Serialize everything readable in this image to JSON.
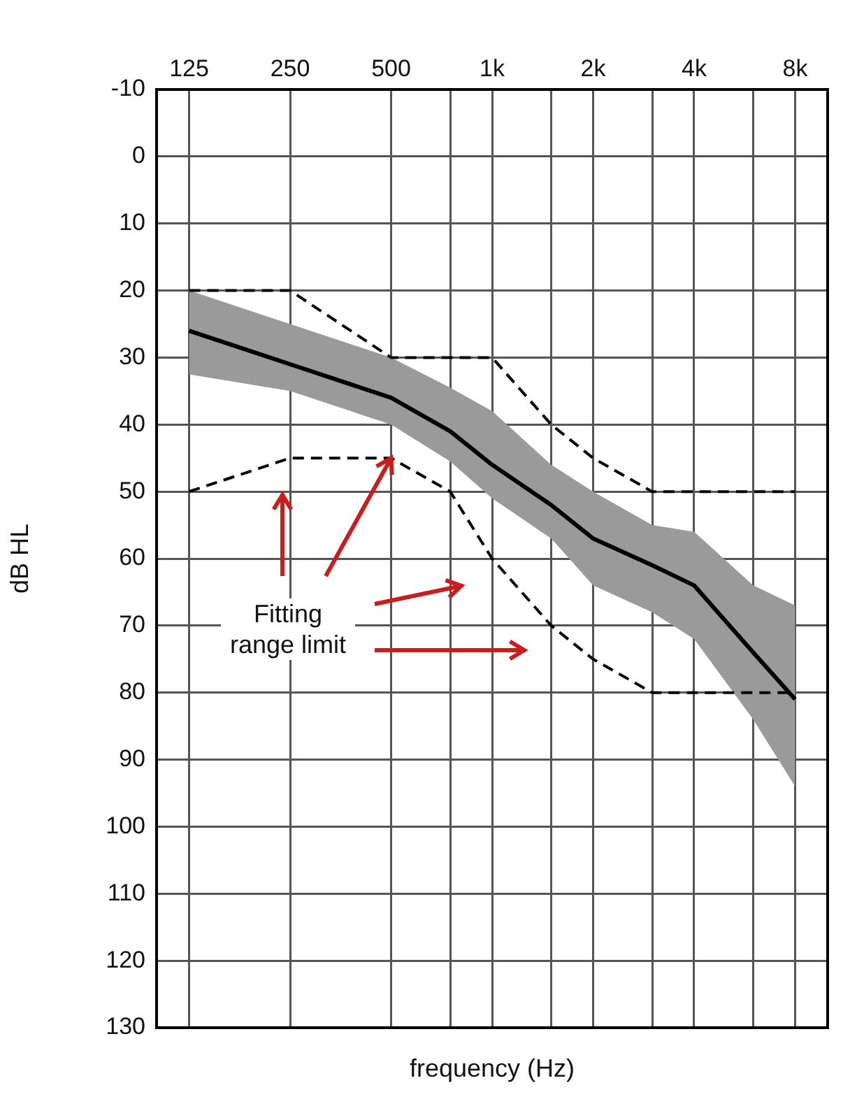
{
  "chart_data": {
    "type": "line",
    "xlabel": "frequency (Hz)",
    "ylabel": "dB HL",
    "annotations": [
      {
        "text": "Fitting range limit",
        "x": 500,
        "y": 45
      }
    ],
    "log": "x",
    "xlim": [
      100,
      10000
    ],
    "xticks": [
      {
        "value": 125,
        "label": "125"
      },
      {
        "value": 250,
        "label": "250"
      },
      {
        "value": 500,
        "label": "500"
      },
      {
        "value": 750,
        "label": null
      },
      {
        "value": 1000,
        "label": "1k"
      },
      {
        "value": 1500,
        "label": null
      },
      {
        "value": 2000,
        "label": "2k"
      },
      {
        "value": 3000,
        "label": null
      },
      {
        "value": 4000,
        "label": "4k"
      },
      {
        "value": 6000,
        "label": null
      },
      {
        "value": 8000,
        "label": "8k"
      }
    ],
    "ylim": [
      130,
      -10
    ],
    "yticks": [
      -10,
      0,
      10,
      20,
      30,
      40,
      50,
      60,
      70,
      80,
      90,
      100,
      110,
      120,
      130
    ],
    "grid": true,
    "legend": false,
    "marker": "none",
    "series": [
      {
        "color": "#000000",
        "line_style": "solid",
        "x": [
          125,
          250,
          500,
          750,
          1000,
          1500,
          2000,
          3000,
          4000,
          6000,
          8000
        ],
        "values": [
          26,
          31,
          36,
          41,
          46,
          52,
          57,
          61,
          64,
          74,
          81
        ],
        "lower": [
          20,
          25,
          30,
          34.5,
          38,
          46,
          50,
          55,
          56,
          64,
          67
        ],
        "upper": [
          32.5,
          35,
          40,
          45.5,
          51,
          57,
          64,
          68,
          72,
          84,
          94
        ]
      },
      {
        "color": "#000000",
        "line_style": "dashed",
        "x": [
          125,
          250,
          500,
          1000,
          1500,
          2000,
          3000,
          8000
        ],
        "values": [
          20,
          20,
          30,
          30,
          40,
          45,
          50,
          50
        ]
      },
      {
        "color": "#000000",
        "line_style": "dashed",
        "x": [
          125,
          250,
          500,
          750,
          1000,
          1500,
          2000,
          3000,
          8000
        ],
        "values": [
          50,
          45,
          45,
          50,
          60,
          70,
          75,
          80,
          80
        ]
      }
    ]
  }
}
